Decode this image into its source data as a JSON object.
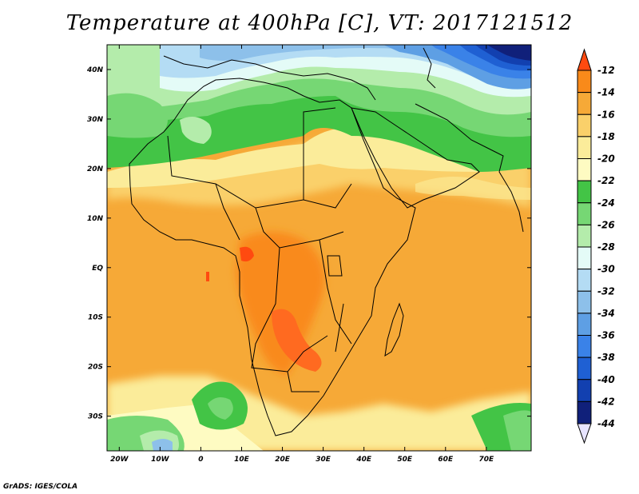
{
  "title": "Temperature at 400hPa [C], VT: 2017121512",
  "credit": "GrADS: IGES/COLA",
  "map": {
    "lon_range": [
      -23,
      81
    ],
    "lat_range": [
      -37,
      45
    ],
    "lon_ticks": [
      {
        "lon": -20,
        "label": "20W"
      },
      {
        "lon": -10,
        "label": "10W"
      },
      {
        "lon": 0,
        "label": "0"
      },
      {
        "lon": 10,
        "label": "10E"
      },
      {
        "lon": 20,
        "label": "20E"
      },
      {
        "lon": 30,
        "label": "30E"
      },
      {
        "lon": 40,
        "label": "40E"
      },
      {
        "lon": 50,
        "label": "50E"
      },
      {
        "lon": 60,
        "label": "60E"
      },
      {
        "lon": 70,
        "label": "70E"
      }
    ],
    "lat_ticks": [
      {
        "lat": 40,
        "label": "40N"
      },
      {
        "lat": 30,
        "label": "30N"
      },
      {
        "lat": 20,
        "label": "20N"
      },
      {
        "lat": 10,
        "label": "10N"
      },
      {
        "lat": 0,
        "label": "EQ"
      },
      {
        "lat": -10,
        "label": "10S"
      },
      {
        "lat": -20,
        "label": "20S"
      },
      {
        "lat": -30,
        "label": "30S"
      }
    ]
  },
  "colorbar": {
    "levels": [
      {
        "label": "-12",
        "color": "#ff4a10"
      },
      {
        "label": "-14",
        "color": "#f98a1a"
      },
      {
        "label": "-16",
        "color": "#f6a937"
      },
      {
        "label": "-18",
        "color": "#fad06a"
      },
      {
        "label": "-20",
        "color": "#fbec9a"
      },
      {
        "label": "-22",
        "color": "#fefbc2"
      },
      {
        "label": "-24",
        "color": "#43c446"
      },
      {
        "label": "-26",
        "color": "#76d774"
      },
      {
        "label": "-28",
        "color": "#b4ecab"
      },
      {
        "label": "-30",
        "color": "#e4fbf7"
      },
      {
        "label": "-32",
        "color": "#b4dcf4"
      },
      {
        "label": "-34",
        "color": "#8dc0ea"
      },
      {
        "label": "-36",
        "color": "#5e9fe4"
      },
      {
        "label": "-38",
        "color": "#3a82e8"
      },
      {
        "label": "-40",
        "color": "#1f60d3"
      },
      {
        "label": "-42",
        "color": "#1240b0"
      },
      {
        "label": "-44",
        "color": "#10207a"
      }
    ],
    "under_color": "#e7e4ff"
  }
}
